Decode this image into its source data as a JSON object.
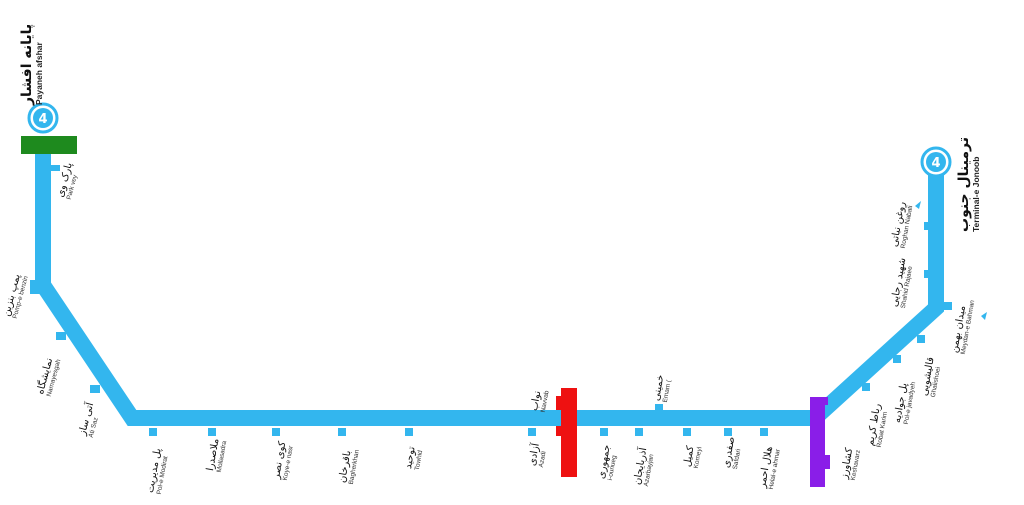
{
  "map": {
    "line_color": "#33b6ee",
    "line_number": "4",
    "terminals": {
      "north": {
        "fa": "پایانه افشار",
        "en": "Payaneh afshar"
      },
      "south": {
        "fa": "ترمینال جنوب",
        "en": "Terminal-e Jonoob"
      }
    },
    "stations": [
      {
        "id": "park-vey",
        "fa": "پارک وی",
        "en": "Park vey"
      },
      {
        "id": "pomp-e-benzin",
        "fa": "پمپ بنزین",
        "en": "Pomp-e benzin"
      },
      {
        "id": "namayeshgah",
        "fa": "نمایشگاه",
        "en": "Namayesgah"
      },
      {
        "id": "ati-saz",
        "fa": "آتی ساز",
        "en": "Ati Saz"
      },
      {
        "id": "pol-e-modiriat",
        "fa": "پل مدیریت",
        "en": "Pol-e Modirat"
      },
      {
        "id": "mollasadra",
        "fa": "ملاصدرا",
        "en": "Mollasadra"
      },
      {
        "id": "koy-e-nasr",
        "fa": "کوی نصر",
        "en": "Koye-e nasr"
      },
      {
        "id": "bagherkhan",
        "fa": "باقرخان",
        "en": "Bagherkhan"
      },
      {
        "id": "towhid",
        "fa": "توحید",
        "en": "Towhid"
      },
      {
        "id": "navvab",
        "fa": "نواب",
        "en": "Navvab"
      },
      {
        "id": "azadi",
        "fa": "آزادی",
        "en": "Azadi"
      },
      {
        "id": "jomhouri",
        "fa": "جمهوری",
        "en": "i-ouriueg"
      },
      {
        "id": "azarbayjan",
        "fa": "آذربایجان",
        "en": "Azarbayjan"
      },
      {
        "id": "emam",
        "fa": "خمینی",
        "en": "Emam ("
      },
      {
        "id": "komeyl",
        "fa": "کمیل",
        "en": "Komeyl"
      },
      {
        "id": "safdari",
        "fa": "صفدری",
        "en": "Safdari"
      },
      {
        "id": "helal-e-ahmar",
        "fa": "هلال احمر",
        "en": "Helal-e ahmar"
      },
      {
        "id": "keshavarz",
        "fa": "کشاورز",
        "en": "Keshavarz"
      },
      {
        "id": "robat-karim",
        "fa": "رباط کریم",
        "en": "Robat Karim"
      },
      {
        "id": "pol-e-javadiyeh",
        "fa": "پل جوادیه",
        "en": "Pol-e javadyeh"
      },
      {
        "id": "ghalishoei",
        "fa": "قالیشویی",
        "en": "Ghalishoei"
      },
      {
        "id": "meydan-e-bahman",
        "fa": "میدان بهمن",
        "en": "Meydan-e Bahman"
      },
      {
        "id": "shahid-rajaee",
        "fa": "شهید رجایی",
        "en": "Shahid Rajaee"
      },
      {
        "id": "roghan-nabati",
        "fa": "روغن نباتی",
        "en": "Roghan Nabati"
      }
    ],
    "interchanges": [
      {
        "id": "green",
        "color": "#1e8a1e"
      },
      {
        "id": "red",
        "color": "#ee1111"
      },
      {
        "id": "purple",
        "color": "#8a1ee8"
      }
    ]
  }
}
